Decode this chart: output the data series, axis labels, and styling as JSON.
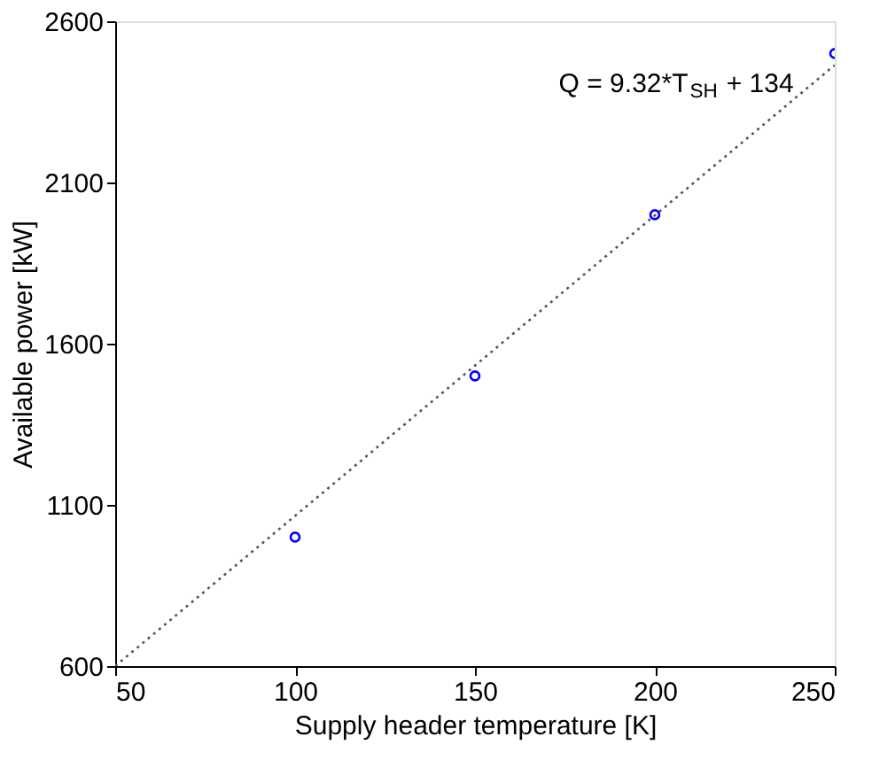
{
  "chart_data": {
    "type": "scatter",
    "xlabel": "Supply header temperature [K]",
    "ylabel": "Available power [kW]",
    "annotations": [
      "Q = 9.32*T$_{SH}$ + 134"
    ],
    "xlim": [
      50,
      250
    ],
    "xticks": [
      50,
      100,
      150,
      200,
      250
    ],
    "ylim": [
      600,
      2600
    ],
    "yticks": [
      600,
      1100,
      1600,
      2100,
      2600
    ],
    "grid": false,
    "marker": "circle",
    "series": [
      {
        "color": "#0000ff",
        "x": [
          100,
          150,
          200,
          250
        ],
        "values": [
          1000,
          1500,
          2000,
          2500
        ]
      },
      {
        "type": "line",
        "color": "#555555",
        "x": [
          50,
          250
        ],
        "values": [
          600,
          2464
        ],
        "line_style": "dotted",
        "marker": "none"
      }
    ]
  }
}
